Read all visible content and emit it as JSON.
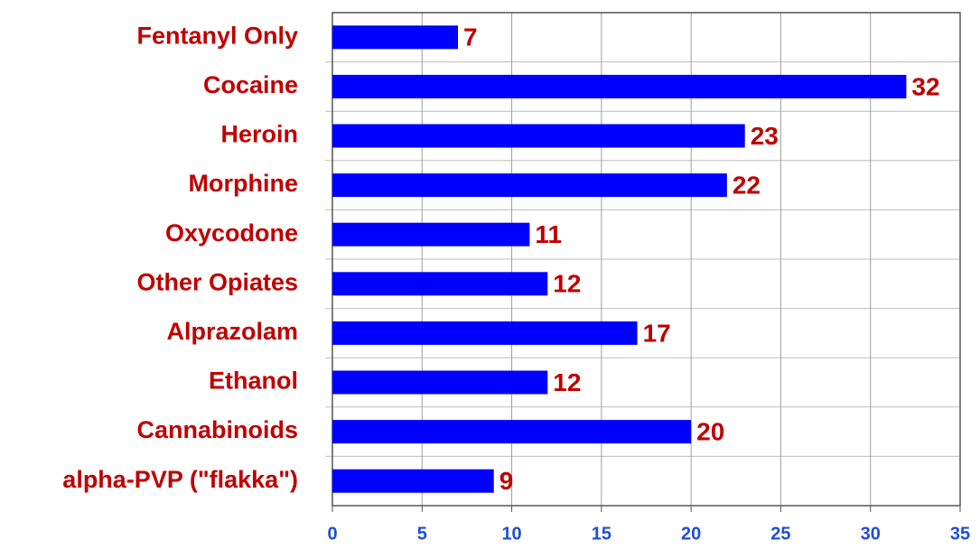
{
  "chart_data": {
    "type": "barh",
    "categories": [
      "Fentanyl Only",
      "Cocaine",
      "Heroin",
      "Morphine",
      "Oxycodone",
      "Other Opiates",
      "Alprazolam",
      "Ethanol",
      "Cannabinoids",
      "alpha-PVP (\"flakka\")"
    ],
    "values": [
      7,
      32,
      23,
      22,
      11,
      12,
      17,
      12,
      20,
      9
    ],
    "color": "#0000ff",
    "xlim": [
      0,
      35
    ],
    "xticks": [
      0,
      5,
      10,
      15,
      20,
      25,
      30,
      35
    ],
    "grid": true
  }
}
